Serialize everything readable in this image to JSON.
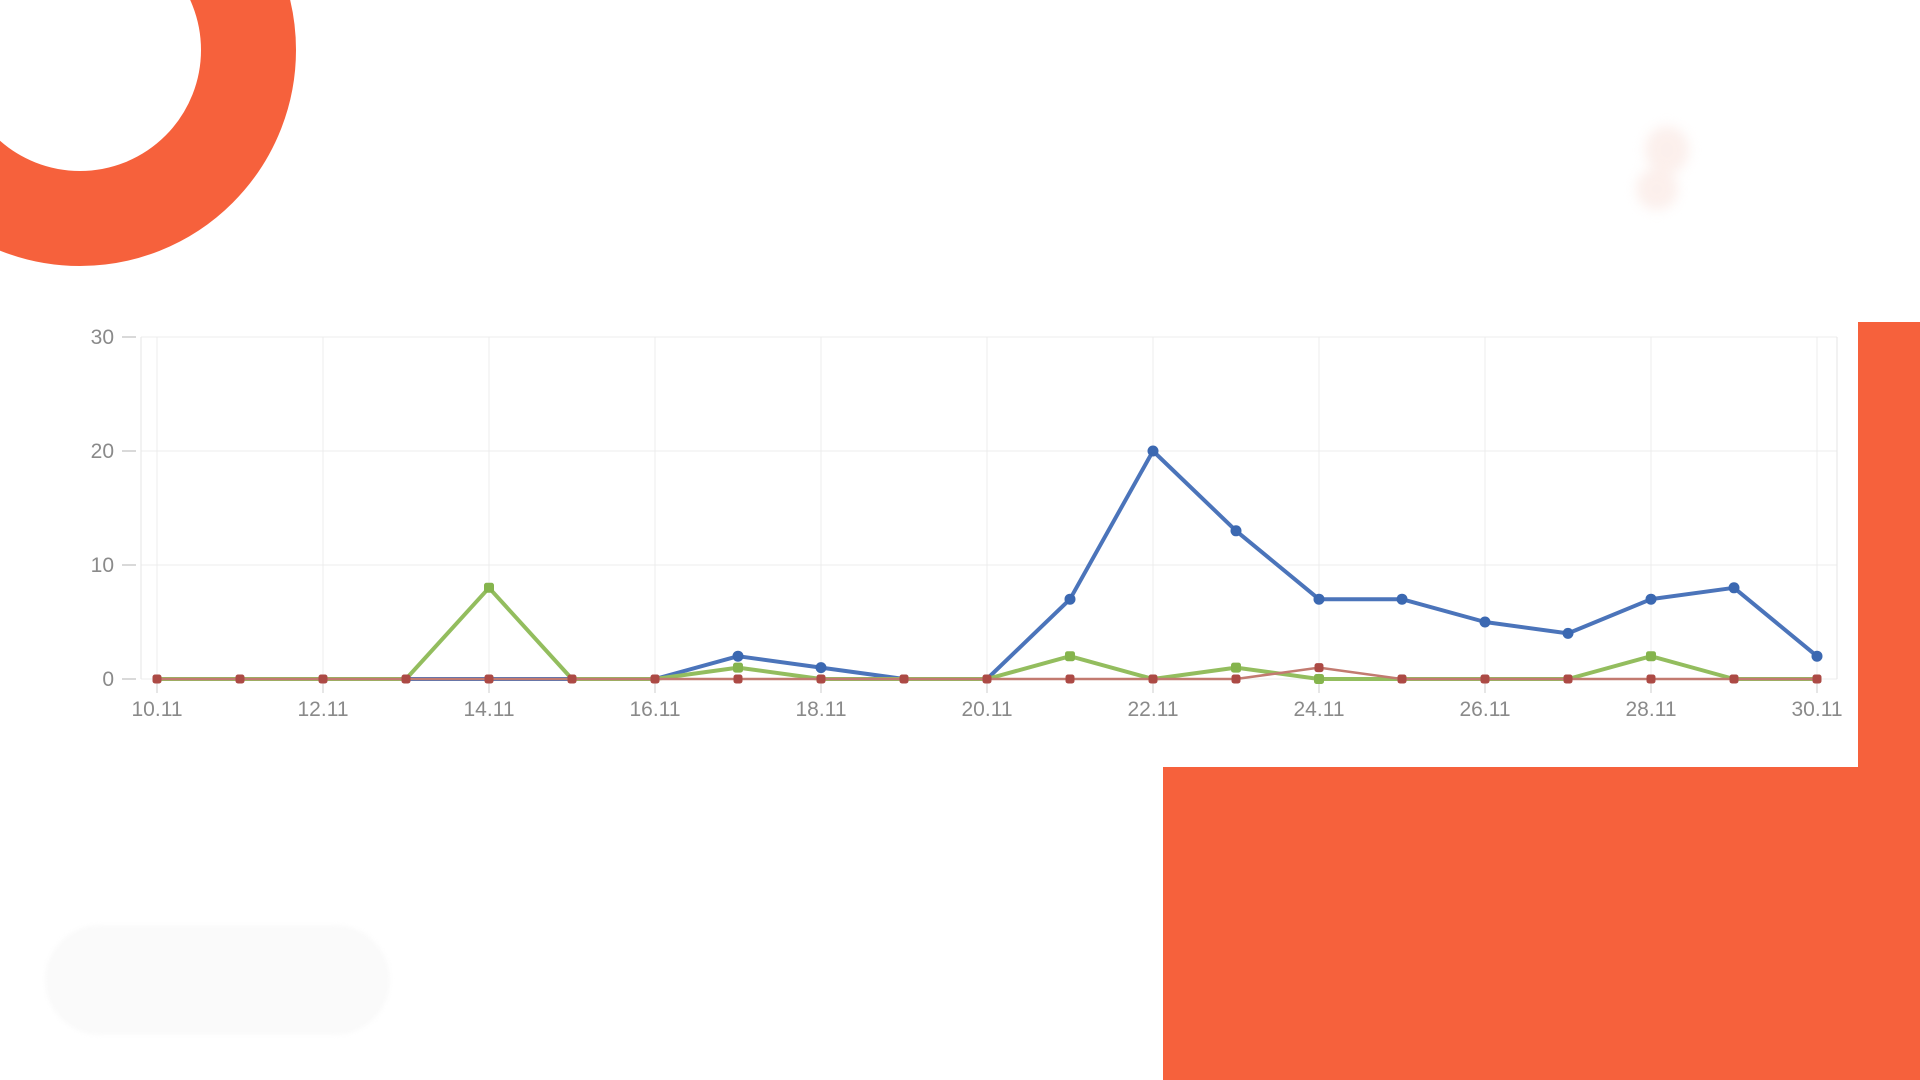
{
  "decor": {
    "accent_orange": "#f6613c",
    "pill_color": "#fafafa",
    "smudge_color": "#f9e3dd"
  },
  "chart_data": {
    "type": "line",
    "title": "",
    "xlabel": "",
    "ylabel": "",
    "x": [
      "10.11",
      "11.11",
      "12.11",
      "13.11",
      "14.11",
      "15.11",
      "16.11",
      "17.11",
      "18.11",
      "19.11",
      "20.11",
      "21.11",
      "22.11",
      "23.11",
      "24.11",
      "25.11",
      "26.11",
      "27.11",
      "28.11",
      "29.11",
      "30.11"
    ],
    "x_tick_labels": [
      "10.11",
      "12.11",
      "14.11",
      "16.11",
      "18.11",
      "20.11",
      "22.11",
      "24.11",
      "26.11",
      "28.11",
      "30.11"
    ],
    "yticks": [
      0,
      10,
      20,
      30
    ],
    "ylim": [
      0,
      30
    ],
    "grid": true,
    "legend": "none",
    "axis_label_color": "#8a8a8a",
    "gridline_color": "#ececec",
    "edge_line_color": "#e6e6e6",
    "tick_color": "#cccccc",
    "series": [
      {
        "name": "blue",
        "line_color": "#4b74ba",
        "marker_color": "#3b68b1",
        "marker": "circle",
        "line_width": 4,
        "marker_size": 11,
        "values": [
          0,
          0,
          0,
          0,
          0,
          0,
          0,
          2,
          1,
          0,
          0,
          7,
          20,
          13,
          7,
          7,
          5,
          4,
          7,
          8,
          2
        ]
      },
      {
        "name": "green",
        "line_color": "#93bd5e",
        "marker_color": "#85b44d",
        "marker": "square",
        "line_width": 4,
        "marker_size": 10,
        "values": [
          0,
          0,
          0,
          0,
          8,
          0,
          0,
          1,
          0,
          0,
          0,
          2,
          0,
          1,
          0,
          0,
          0,
          0,
          2,
          0,
          0
        ]
      },
      {
        "name": "red",
        "line_color": "#c27a70",
        "marker_color": "#ac4a45",
        "marker": "square",
        "line_width": 2.5,
        "marker_size": 9,
        "values": [
          0,
          0,
          0,
          0,
          0,
          0,
          0,
          0,
          0,
          0,
          0,
          0,
          0,
          0,
          1,
          0,
          0,
          0,
          0,
          0,
          0
        ]
      }
    ]
  }
}
